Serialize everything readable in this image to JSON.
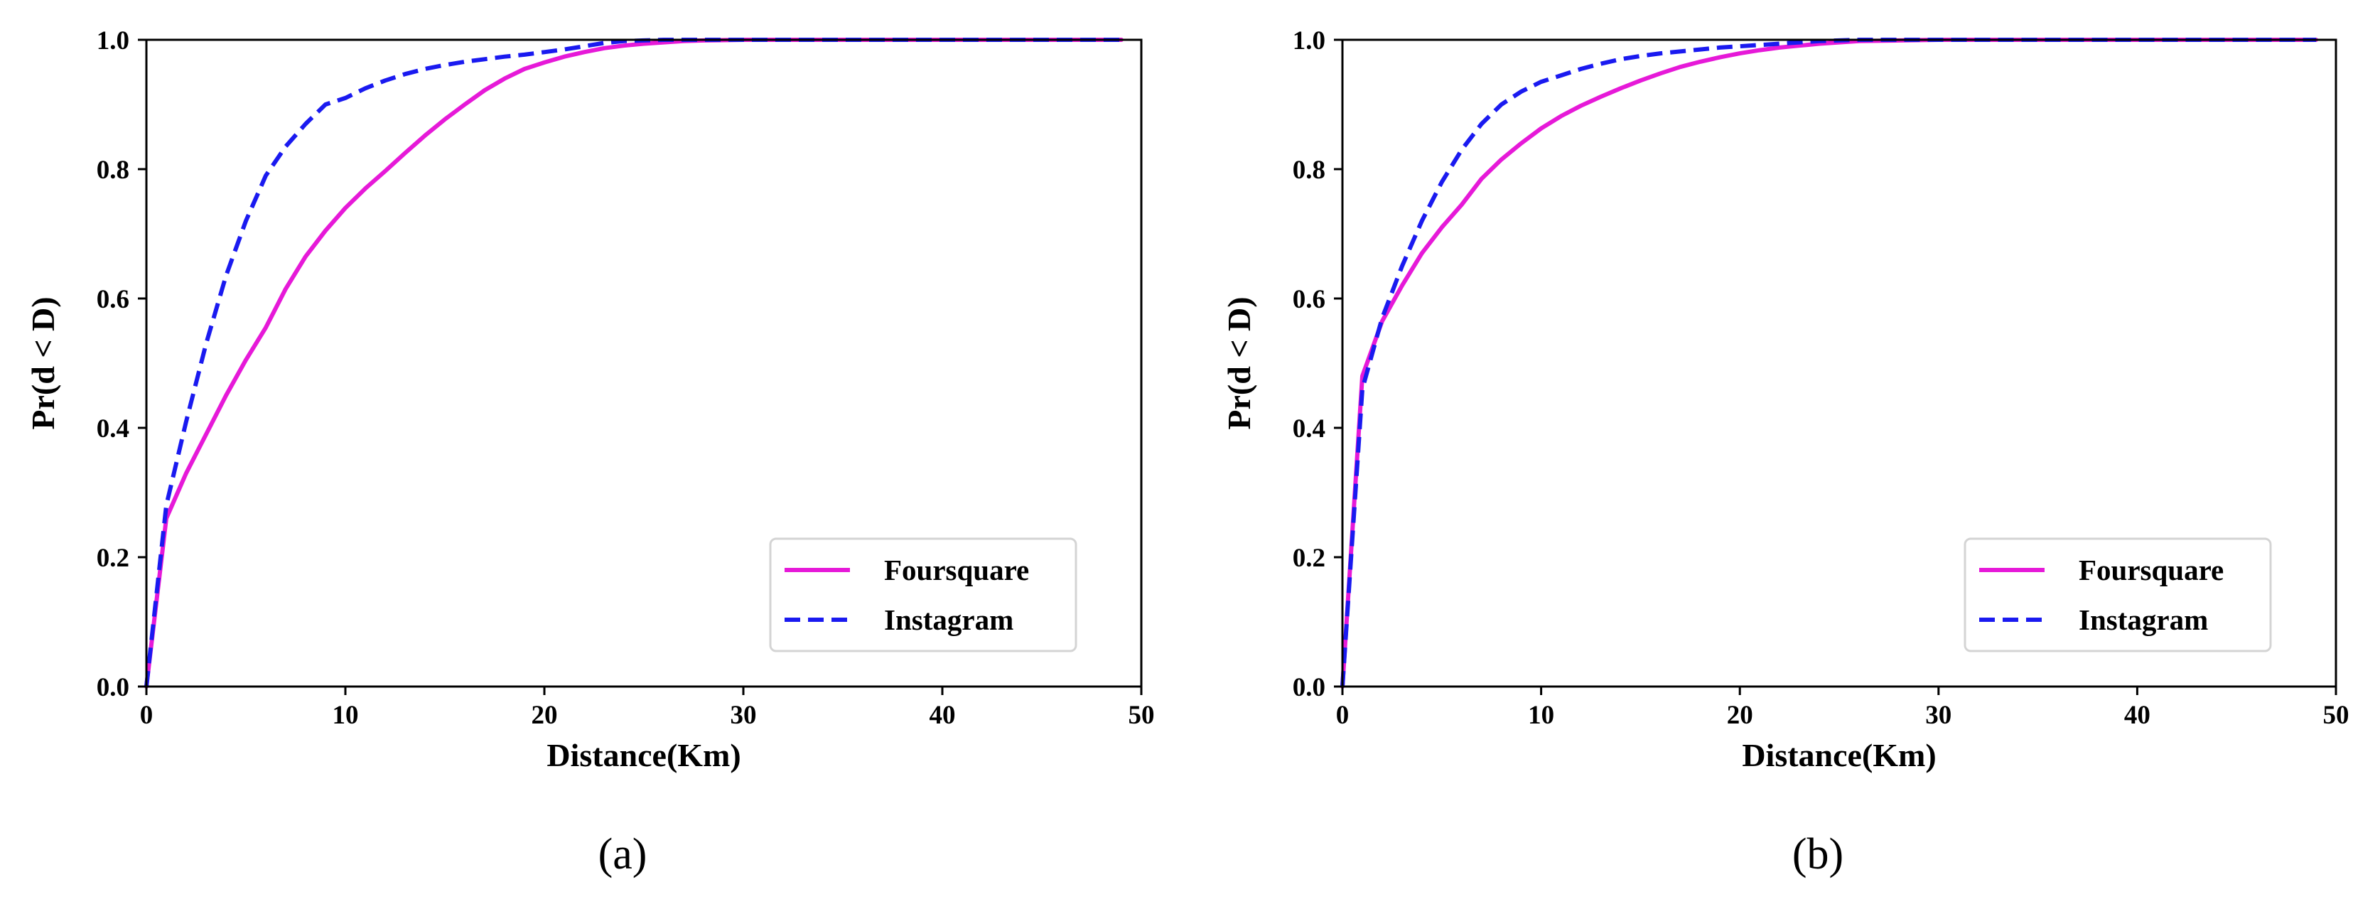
{
  "chart_data": [
    {
      "type": "line",
      "panel_label": "(a)",
      "xlabel": "Distance(Km)",
      "ylabel": "Pr(d < D)",
      "xlim": [
        0,
        50
      ],
      "ylim": [
        0,
        1.0
      ],
      "xticks": [
        "0",
        "10",
        "20",
        "30",
        "40",
        "50"
      ],
      "yticks": [
        "0.0",
        "0.2",
        "0.4",
        "0.6",
        "0.8",
        "1.0"
      ],
      "grid": false,
      "legend_position": "lower-right",
      "series": [
        {
          "name": "Foursquare",
          "color": "#e619d8",
          "style": "solid",
          "x": [
            0,
            1,
            2,
            3,
            4,
            5,
            6,
            7,
            8,
            9,
            10,
            11,
            12,
            13,
            14,
            15,
            16,
            17,
            18,
            19,
            20,
            21,
            22,
            23,
            24,
            25,
            26,
            27,
            28,
            30,
            35,
            40,
            45,
            49
          ],
          "y": [
            0.0,
            0.26,
            0.33,
            0.39,
            0.45,
            0.505,
            0.555,
            0.615,
            0.665,
            0.705,
            0.74,
            0.77,
            0.797,
            0.825,
            0.852,
            0.877,
            0.9,
            0.922,
            0.94,
            0.955,
            0.965,
            0.974,
            0.981,
            0.987,
            0.991,
            0.994,
            0.996,
            0.998,
            0.999,
            1.0,
            1.0,
            1.0,
            1.0,
            1.0
          ]
        },
        {
          "name": "Instagram",
          "color": "#1a1af0",
          "style": "dashed",
          "x": [
            0,
            1,
            2,
            3,
            4,
            5,
            6,
            7,
            8,
            9,
            10,
            11,
            12,
            13,
            14,
            15,
            16,
            17,
            18,
            19,
            20,
            21,
            22,
            23,
            24,
            25,
            26,
            28,
            30,
            35,
            40,
            45,
            49
          ],
          "y": [
            0.0,
            0.28,
            0.41,
            0.53,
            0.635,
            0.72,
            0.79,
            0.835,
            0.87,
            0.9,
            0.91,
            0.925,
            0.937,
            0.947,
            0.955,
            0.961,
            0.966,
            0.97,
            0.974,
            0.977,
            0.981,
            0.985,
            0.99,
            0.995,
            0.998,
            0.999,
            1.0,
            1.0,
            1.0,
            1.0,
            1.0,
            1.0,
            1.0
          ]
        }
      ]
    },
    {
      "type": "line",
      "panel_label": "(b)",
      "xlabel": "Distance(Km)",
      "ylabel": "Pr(d < D)",
      "xlim": [
        0,
        50
      ],
      "ylim": [
        0,
        1.0
      ],
      "xticks": [
        "0",
        "10",
        "20",
        "30",
        "40",
        "50"
      ],
      "yticks": [
        "0.0",
        "0.2",
        "0.4",
        "0.6",
        "0.8",
        "1.0"
      ],
      "grid": false,
      "legend_position": "lower-right",
      "series": [
        {
          "name": "Foursquare",
          "color": "#e619d8",
          "style": "solid",
          "x": [
            0,
            1,
            2,
            3,
            4,
            5,
            6,
            7,
            8,
            9,
            10,
            11,
            12,
            13,
            14,
            15,
            16,
            17,
            18,
            19,
            20,
            21,
            22,
            23,
            24,
            25,
            26,
            28,
            30,
            35,
            40,
            45,
            49
          ],
          "y": [
            0.0,
            0.48,
            0.565,
            0.62,
            0.67,
            0.71,
            0.745,
            0.785,
            0.815,
            0.84,
            0.863,
            0.882,
            0.898,
            0.912,
            0.925,
            0.937,
            0.948,
            0.958,
            0.966,
            0.973,
            0.979,
            0.984,
            0.988,
            0.991,
            0.994,
            0.996,
            0.998,
            0.999,
            1.0,
            1.0,
            1.0,
            1.0,
            1.0
          ]
        },
        {
          "name": "Instagram",
          "color": "#1a1af0",
          "style": "dashed",
          "x": [
            0,
            1,
            2,
            3,
            4,
            5,
            6,
            7,
            8,
            9,
            10,
            11,
            12,
            13,
            14,
            15,
            16,
            17,
            18,
            19,
            20,
            21,
            22,
            23,
            24,
            25,
            26,
            28,
            30,
            35,
            40,
            45,
            49
          ],
          "y": [
            0.0,
            0.46,
            0.57,
            0.65,
            0.72,
            0.78,
            0.83,
            0.87,
            0.9,
            0.92,
            0.935,
            0.945,
            0.955,
            0.963,
            0.97,
            0.975,
            0.979,
            0.982,
            0.985,
            0.988,
            0.99,
            0.992,
            0.994,
            0.996,
            0.998,
            0.999,
            1.0,
            1.0,
            1.0,
            1.0,
            1.0,
            1.0,
            1.0
          ]
        }
      ]
    }
  ]
}
